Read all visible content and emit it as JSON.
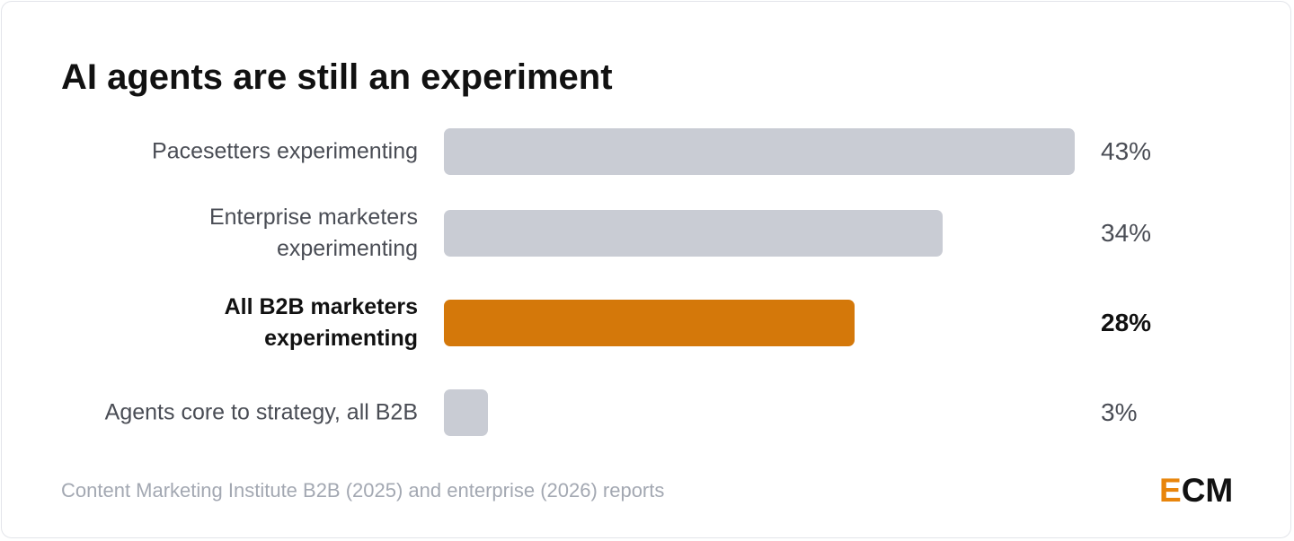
{
  "chart_data": {
    "type": "bar",
    "orientation": "horizontal",
    "title": "AI agents are still an experiment",
    "categories": [
      "Pacesetters experimenting",
      "Enterprise marketers experimenting",
      "All B2B marketers experimenting",
      "Agents core to strategy, all B2B"
    ],
    "values": [
      43,
      34,
      28,
      3
    ],
    "value_labels": [
      "43%",
      "34%",
      "28%",
      "3%"
    ],
    "highlight_index": 2,
    "xlim": [
      0,
      43
    ],
    "grid": false,
    "legend": "none",
    "colors": {
      "default_bar": "#c9ccd4",
      "highlight_bar": "#d4780a"
    }
  },
  "source": "Content Marketing Institute B2B (2025) and enterprise (2026) reports",
  "logo": {
    "first": "E",
    "rest": "CM",
    "accent_color": "#e8850c"
  }
}
